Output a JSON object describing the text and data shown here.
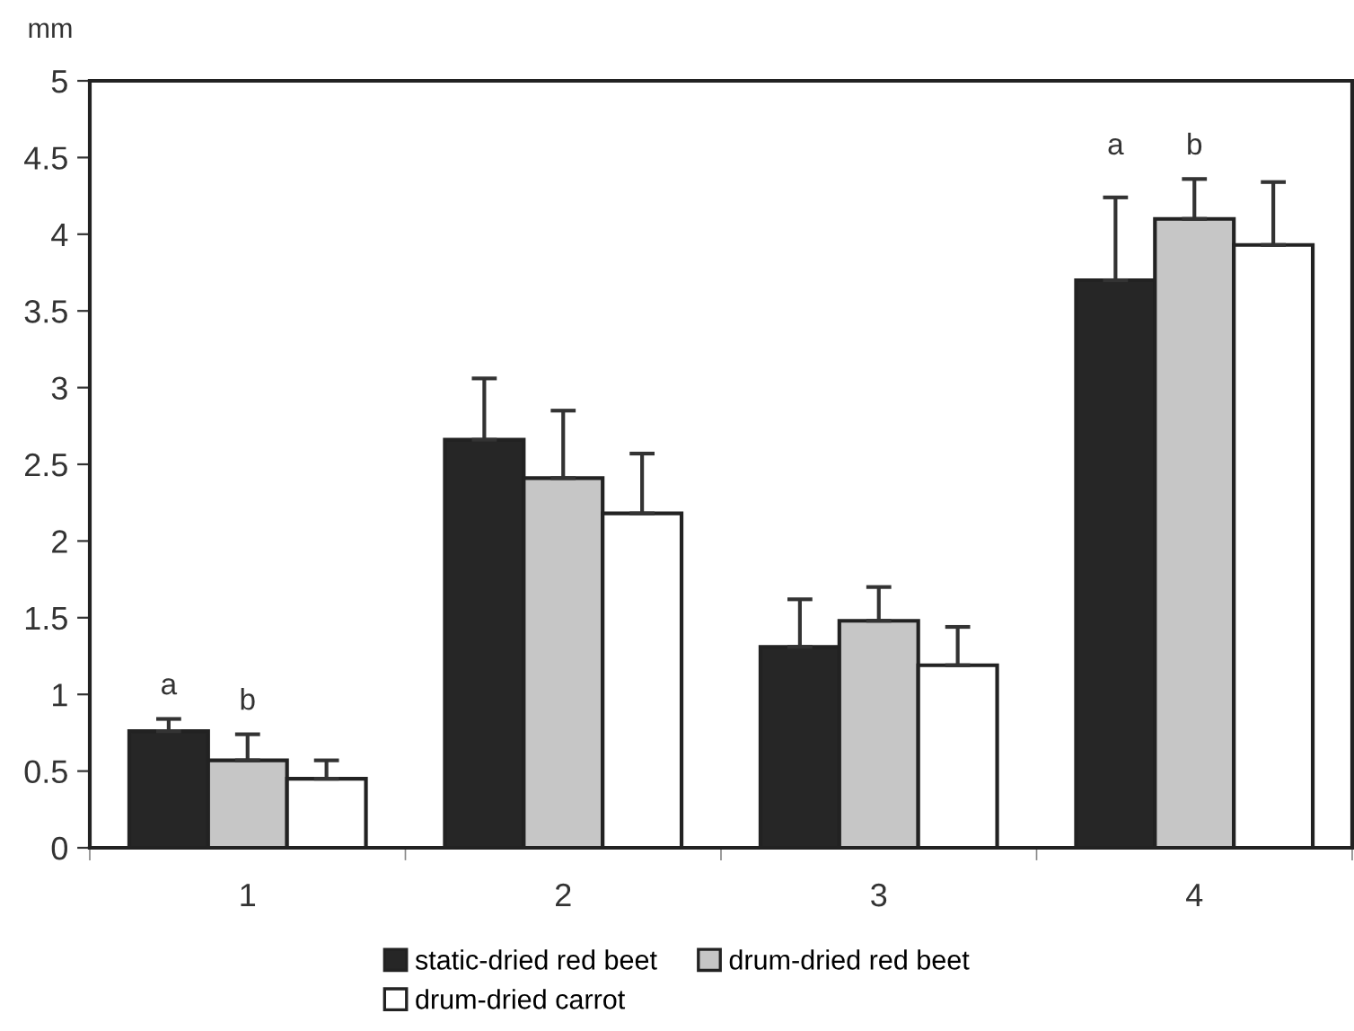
{
  "chart_data": {
    "type": "bar",
    "ylabel": "mm",
    "categories": [
      "1",
      "2",
      "3",
      "4"
    ],
    "series": [
      {
        "name": "static-dried red beet",
        "color": "#262626",
        "values": [
          0.76,
          2.66,
          1.31,
          3.7
        ],
        "errors": [
          [
            0.76,
            0.84
          ],
          [
            2.66,
            3.06
          ],
          [
            1.31,
            1.62
          ],
          [
            3.7,
            4.24
          ]
        ]
      },
      {
        "name": "drum-dried red beet",
        "color": "#c6c6c6",
        "values": [
          0.57,
          2.41,
          1.48,
          4.1
        ],
        "errors": [
          [
            0.57,
            0.74
          ],
          [
            2.41,
            2.85
          ],
          [
            1.48,
            1.7
          ],
          [
            4.1,
            4.36
          ]
        ]
      },
      {
        "name": "drum-dried carrot",
        "color": "#ffffff",
        "values": [
          0.45,
          2.18,
          1.19,
          3.93
        ],
        "errors": [
          [
            0.45,
            0.57
          ],
          [
            2.18,
            2.57
          ],
          [
            1.19,
            1.44
          ],
          [
            3.93,
            4.34
          ]
        ]
      }
    ],
    "annotations": [
      "a",
      "b",
      "a",
      "b"
    ],
    "ylim": [
      0,
      5
    ],
    "yticks": [
      0,
      0.5,
      1,
      1.5,
      2,
      2.5,
      3,
      3.5,
      4,
      4.5,
      5
    ],
    "grid": false,
    "legend": "bottom"
  }
}
